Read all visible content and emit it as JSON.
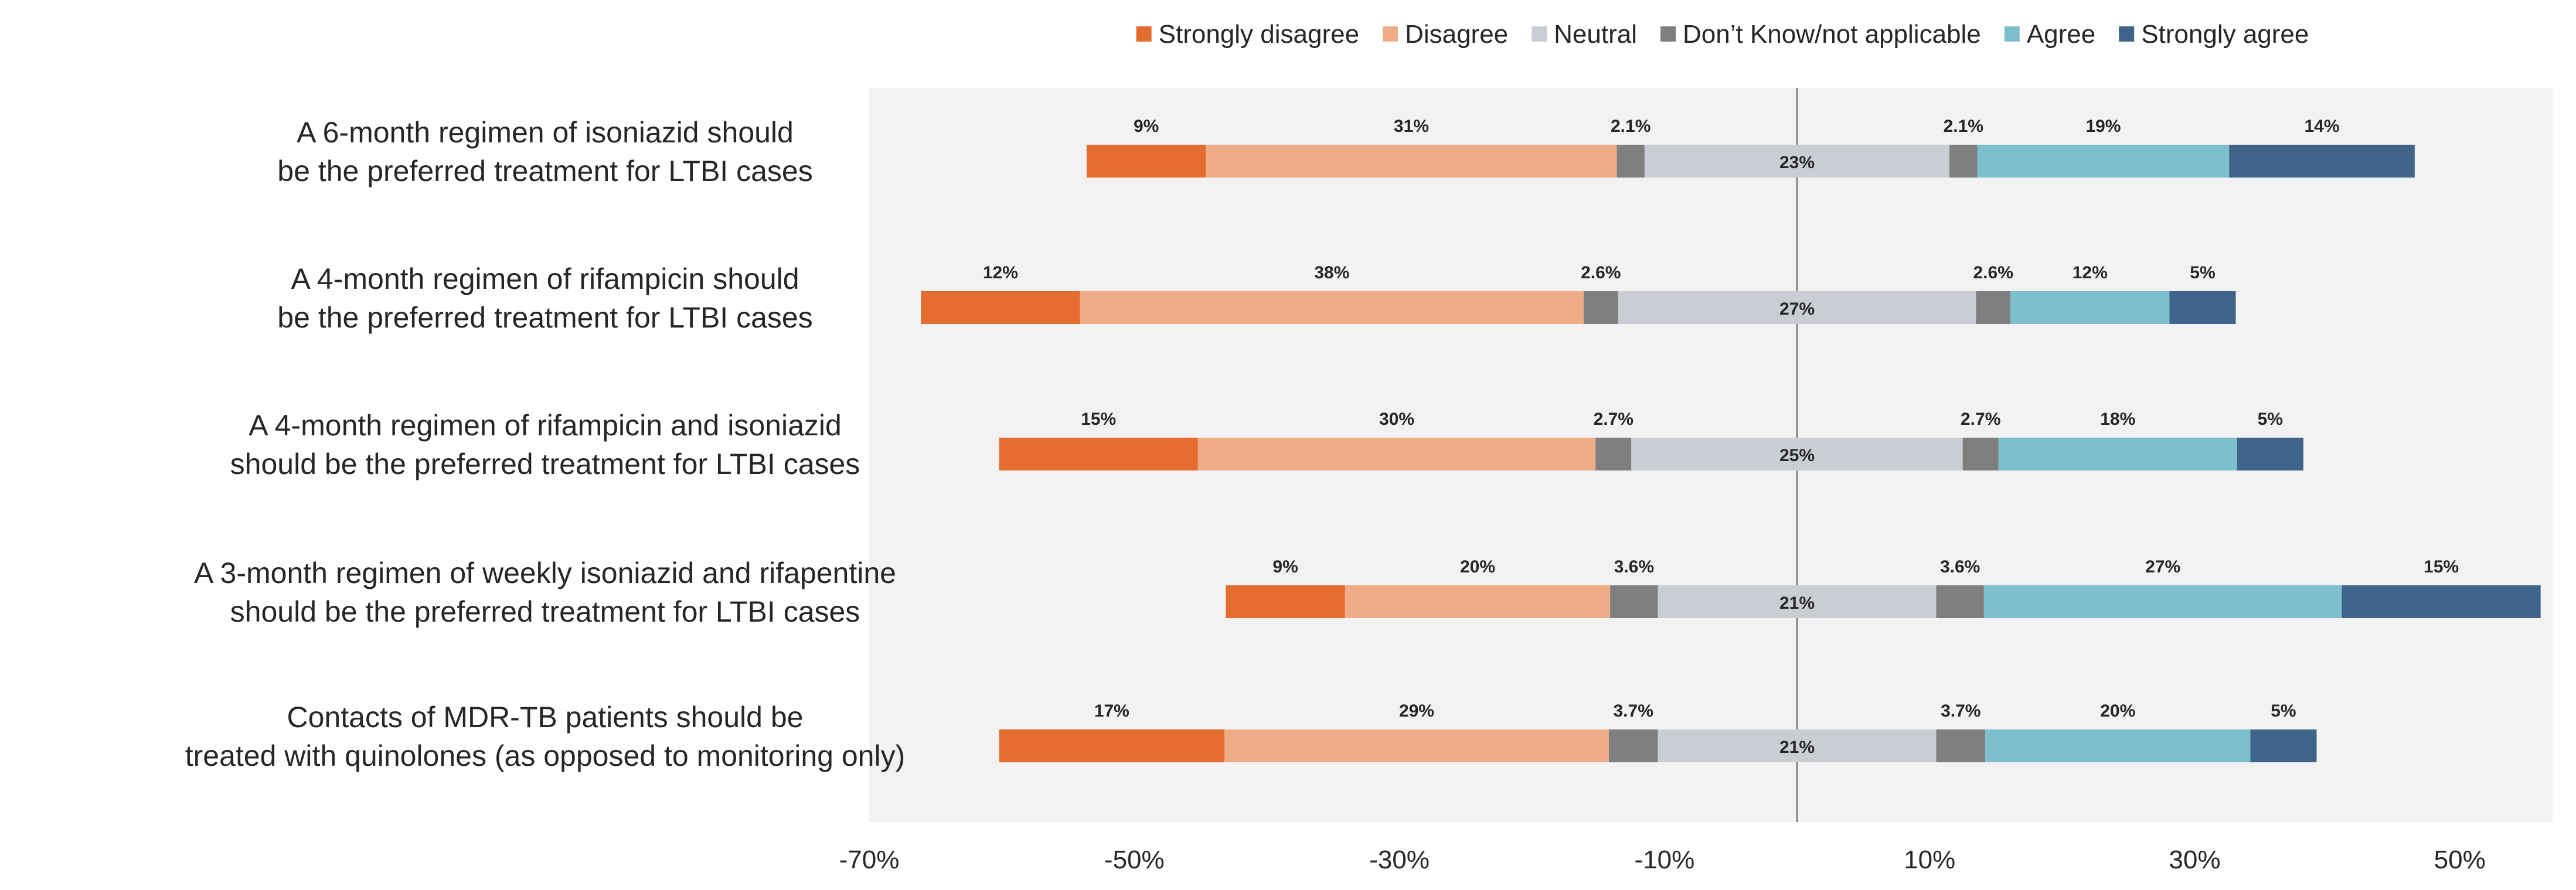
{
  "chart_data": {
    "type": "bar",
    "orientation": "horizontal-diverging-stacked",
    "title": "",
    "xlabel": "",
    "ylabel": "",
    "xlim": [
      -70,
      57
    ],
    "xticks": [
      -70,
      -50,
      -30,
      -10,
      10,
      30,
      50
    ],
    "xtick_labels": [
      "-70%",
      "-50%",
      "-30%",
      "-10%",
      "10%",
      "30%",
      "50%"
    ],
    "zero_line": 0,
    "legend_position": "top",
    "categories": [
      [
        "A 6-month regimen of isoniazid should",
        "be the preferred treatment for LTBI cases"
      ],
      [
        "A 4-month regimen of rifampicin should",
        "be the preferred treatment for LTBI cases"
      ],
      [
        "A 4-month regimen of rifampicin and isoniazid",
        "should be the preferred treatment for LTBI cases"
      ],
      [
        "A 3-month regimen of weekly isoniazid and rifapentine",
        "should be the preferred treatment for LTBI cases"
      ],
      [
        "Contacts of MDR-TB patients should be",
        "treated with quinolones (as opposed to monitoring only)"
      ]
    ],
    "series": [
      {
        "name": "Strongly disagree",
        "color": "#E46C2E",
        "values": [
          9,
          12,
          15,
          9,
          17
        ],
        "labels": [
          "9%",
          "12%",
          "15%",
          "9%",
          "17%"
        ]
      },
      {
        "name": "Disagree",
        "color": "#EFAD87",
        "values": [
          31,
          38,
          30,
          20,
          29
        ],
        "labels": [
          "31%",
          "38%",
          "30%",
          "20%",
          "29%"
        ]
      },
      {
        "name": "Don’t Know/not applicable (negative half)",
        "color": "#7F7F7F",
        "values": [
          2.1,
          2.6,
          2.7,
          3.6,
          3.7
        ],
        "labels": [
          "2.1%",
          "2.6%",
          "2.7%",
          "3.6%",
          "3.7%"
        ]
      },
      {
        "name": "Neutral",
        "color": "#CACED4",
        "values": [
          23,
          27,
          25,
          21,
          21
        ],
        "labels": [
          "23%",
          "27%",
          "25%",
          "21%",
          "21%"
        ]
      },
      {
        "name": "Don’t Know/not applicable (positive half)",
        "color": "#7F7F7F",
        "values": [
          2.1,
          2.6,
          2.7,
          3.6,
          3.7
        ],
        "labels": [
          "2.1%",
          "2.6%",
          "2.7%",
          "3.6%",
          "3.7%"
        ]
      },
      {
        "name": "Agree",
        "color": "#7DBFCF",
        "values": [
          19,
          12,
          18,
          27,
          20
        ],
        "labels": [
          "19%",
          "12%",
          "18%",
          "27%",
          "20%"
        ]
      },
      {
        "name": "Strongly agree",
        "color": "#3E6489",
        "values": [
          14,
          5,
          5,
          15,
          5
        ],
        "labels": [
          "14%",
          "5%",
          "5%",
          "15%",
          "5%"
        ]
      }
    ],
    "legend": [
      {
        "label": "Strongly disagree",
        "color": "#E46C2E"
      },
      {
        "label": "Disagree",
        "color": "#EFAD87"
      },
      {
        "label": "Neutral",
        "color": "#CACED4"
      },
      {
        "label": "Don’t Know/not applicable",
        "color": "#7F7F7F"
      },
      {
        "label": "Agree",
        "color": "#7DBFCF"
      },
      {
        "label": "Strongly agree",
        "color": "#3E6489"
      }
    ],
    "plot_background": "#F2F2F2"
  }
}
